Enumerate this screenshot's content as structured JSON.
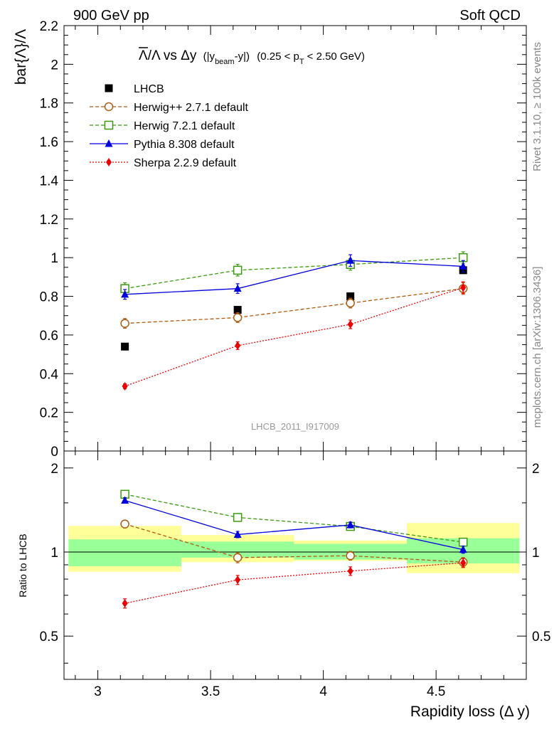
{
  "header": {
    "left": "900 GeV pp",
    "right": "Soft QCD"
  },
  "side_labels": {
    "rivet": "Rivet 3.1.10, ≥ 100k events",
    "mcplots": "mcplots.cern.ch [arXiv:1306.3436]"
  },
  "chart_data": {
    "type": "line",
    "title": {
      "main_prefix": "Λ",
      "main_mid": "/Λ vs Δy",
      "open": "(|y",
      "beam": "beam",
      "close": "-y|)",
      "range_prefix": "(0.25 < p",
      "T": "T",
      "range_suffix": "< 2.50 GeV)"
    },
    "watermark": "LHCB_2011_I917009",
    "ylabel": "bar{Λ}/Λ",
    "xlabel": "Rapidity loss (Δ y)",
    "ratio_ylabel": "Ratio to LHCB",
    "xlim": [
      2.85,
      4.9
    ],
    "ylim": [
      0,
      2.2
    ],
    "ratio_ylim": [
      0.35,
      2.3
    ],
    "ratio_log": true,
    "x": [
      3.12,
      3.62,
      4.12,
      4.62
    ],
    "x_edges": [
      2.87,
      3.37,
      3.87,
      4.37,
      4.87
    ],
    "x_ticks": [
      "3",
      "3.5",
      "4",
      "4.5"
    ],
    "x_tick_values": [
      3,
      3.5,
      4,
      4.5
    ],
    "y_ticks": [
      "0",
      "0.2",
      "0.4",
      "0.6",
      "0.8",
      "1",
      "1.2",
      "1.4",
      "1.6",
      "1.8",
      "2",
      "2.2"
    ],
    "y_tick_values": [
      0,
      0.2,
      0.4,
      0.6,
      0.8,
      1,
      1.2,
      1.4,
      1.6,
      1.8,
      2,
      2.2
    ],
    "ratio_ticks_left": [
      "0.5",
      "1",
      "2"
    ],
    "ratio_ticks_right": [
      "0.5",
      "1",
      "2"
    ],
    "ratio_tick_values": [
      0.5,
      1,
      2
    ],
    "data_series": {
      "name": "LHCB",
      "color": "#000000",
      "values": [
        0.54,
        0.73,
        0.8,
        0.935
      ],
      "band_green": [
        [
          0.89,
          1.11
        ],
        [
          0.955,
          1.09
        ],
        [
          0.94,
          1.07
        ],
        [
          0.91,
          1.12
        ]
      ],
      "band_yellow": [
        [
          0.85,
          1.24
        ],
        [
          0.92,
          1.15
        ],
        [
          0.93,
          1.1
        ],
        [
          0.84,
          1.27
        ]
      ]
    },
    "series": [
      {
        "name": "Herwig++ 2.7.1 default",
        "color": "#b05a10",
        "marker": "open-circle",
        "dash": "5,3",
        "values": [
          0.66,
          0.69,
          0.765,
          0.84
        ],
        "errors": [
          0.025,
          0.025,
          0.025,
          0.03
        ],
        "ratio": [
          1.26,
          0.955,
          0.97,
          0.92
        ],
        "ratio_errors": [
          0.04,
          0.04,
          0.035,
          0.035
        ]
      },
      {
        "name": "Herwig 7.2.1 default",
        "color": "#3a9a10",
        "marker": "open-square",
        "dash": "5,3",
        "values": [
          0.84,
          0.935,
          0.965,
          1.0
        ],
        "errors": [
          0.03,
          0.03,
          0.03,
          0.03
        ],
        "ratio": [
          1.61,
          1.33,
          1.235,
          1.085
        ],
        "ratio_errors": [
          0.04,
          0.04,
          0.035,
          0.035
        ]
      },
      {
        "name": "Pythia 8.308 default",
        "color": "#0000dd",
        "marker": "filled-triangle",
        "dash": "",
        "values": [
          0.81,
          0.84,
          0.985,
          0.955
        ],
        "errors": [
          0.025,
          0.025,
          0.03,
          0.03
        ],
        "ratio": [
          1.53,
          1.155,
          1.25,
          1.02
        ],
        "ratio_errors": [
          0.035,
          0.03,
          0.03,
          0.03
        ]
      },
      {
        "name": "Sherpa 2.2.9 default",
        "color": "#ee0000",
        "marker": "filled-diamond",
        "dash": "2,2",
        "values": [
          0.335,
          0.545,
          0.655,
          0.845
        ],
        "errors": [
          0.012,
          0.02,
          0.022,
          0.03
        ],
        "ratio": [
          0.655,
          0.795,
          0.855,
          0.915
        ],
        "ratio_errors": [
          0.025,
          0.03,
          0.03,
          0.035
        ]
      }
    ]
  }
}
